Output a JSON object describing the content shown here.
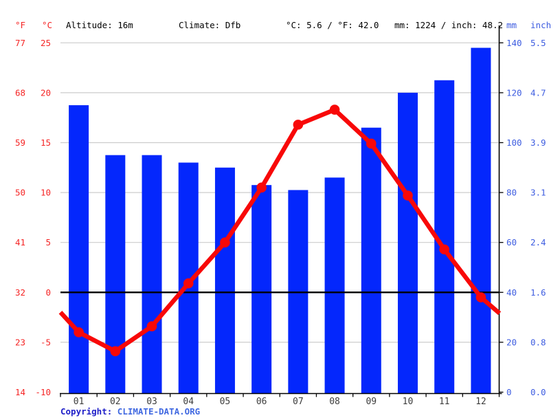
{
  "header": {
    "f_symbol": "°F",
    "c_symbol": "°C",
    "altitude": "Altitude: 16m",
    "climate": "Climate: Dfb",
    "temp_summary": "°C: 5.6 / °F: 42.0",
    "precip_summary": "mm: 1224 / inch: 48.2",
    "mm_symbol": "mm",
    "inch_symbol": "inch"
  },
  "footer": {
    "copyright_label": "Copyright: ",
    "site_link": "CLIMATE-DATA.ORG"
  },
  "colors": {
    "bar_blue": "#0427fc",
    "line_red": "#f80808",
    "red_labels": "#f52525",
    "blue_labels": "#3d5ce0",
    "gridline": "#cccccc",
    "axis_black": "#000000",
    "month_label": "#3c3c3c"
  },
  "chart_data": {
    "type": "bar+line climograph",
    "categories": [
      "01",
      "02",
      "03",
      "04",
      "05",
      "06",
      "07",
      "08",
      "09",
      "10",
      "11",
      "12"
    ],
    "series": [
      {
        "name": "precipitation_mm",
        "type": "bar",
        "values": [
          115,
          95,
          95,
          92,
          90,
          83,
          81,
          86,
          106,
          120,
          125,
          138
        ]
      },
      {
        "name": "temperature_c",
        "type": "line",
        "values": [
          -4.0,
          -5.9,
          -3.4,
          0.9,
          5.0,
          10.5,
          16.8,
          18.3,
          14.9,
          9.7,
          4.3,
          -0.5
        ],
        "edge_start_c": -2.0,
        "edge_end_c": -2.1
      }
    ],
    "left_axis_f": [
      "77",
      "68",
      "59",
      "50",
      "41",
      "32",
      "23",
      "14"
    ],
    "left_axis_c": [
      "25",
      "20",
      "15",
      "10",
      "5",
      "0",
      "-5",
      "-10"
    ],
    "right_axis_mm": [
      "140",
      "120",
      "100",
      "80",
      "60",
      "40",
      "20",
      "0"
    ],
    "right_axis_inch": [
      "5.5",
      "4.7",
      "3.9",
      "3.1",
      "2.4",
      "1.6",
      "0.8",
      "0.0"
    ],
    "temp_axis_range_c": [
      -10,
      25
    ],
    "precip_axis_range_mm": [
      0,
      140
    ],
    "zero_line_c": 0,
    "grid": true,
    "legend": "none"
  }
}
